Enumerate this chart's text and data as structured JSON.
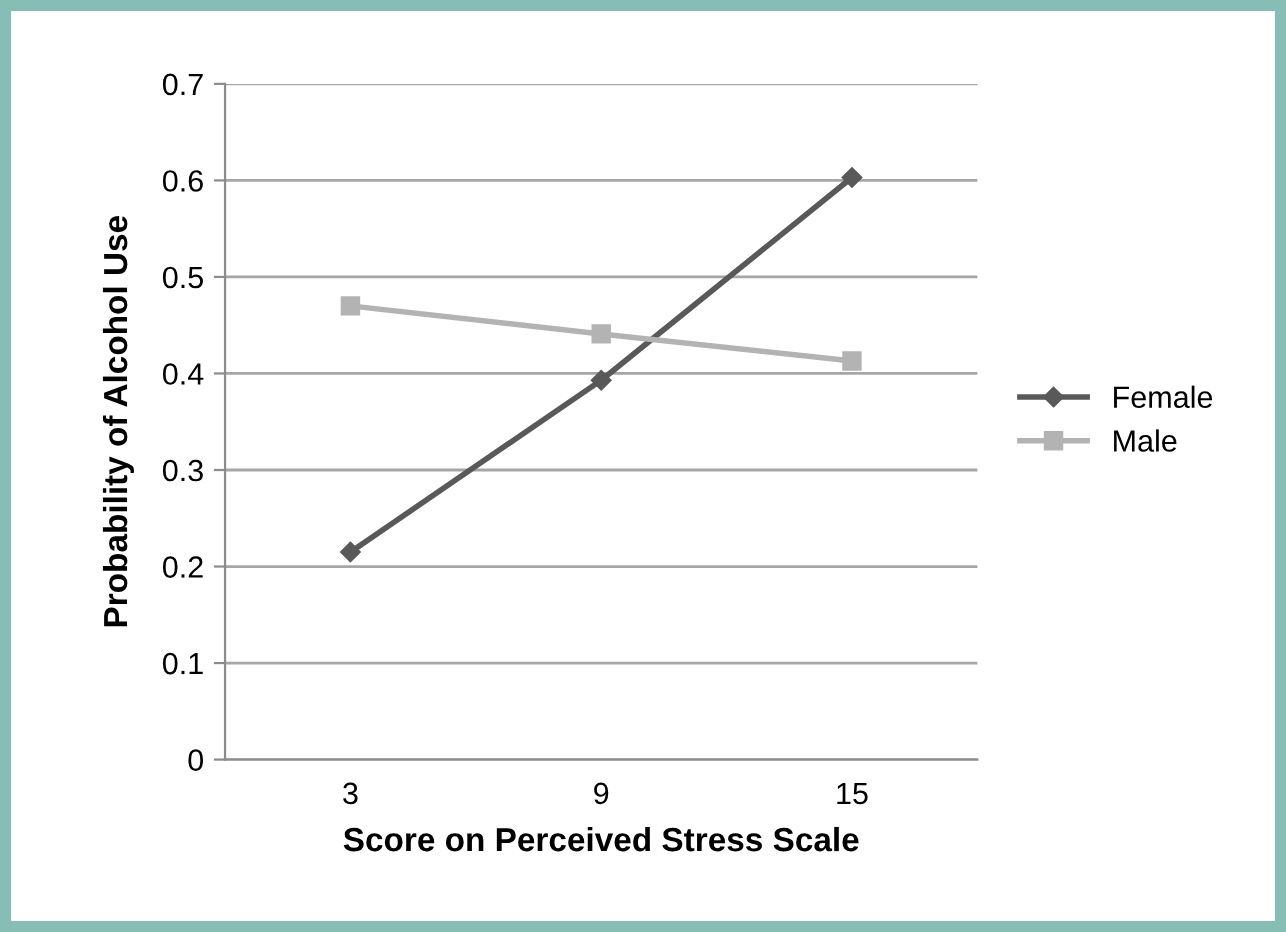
{
  "chart_data": {
    "type": "line",
    "xlabel": "Score on Perceived Stress Scale",
    "ylabel": "Probability of Alcohol Use",
    "categories": [
      "3",
      "9",
      "15"
    ],
    "series": [
      {
        "name": "Female",
        "color": "#595959",
        "marker": "diamond",
        "values": [
          0.215,
          0.393,
          0.603
        ]
      },
      {
        "name": "Male",
        "color": "#b3b3b3",
        "marker": "square",
        "values": [
          0.47,
          0.441,
          0.413
        ]
      }
    ],
    "ylim": [
      0,
      0.7
    ],
    "yticks": [
      0,
      0.1,
      0.2,
      0.3,
      0.4,
      0.5,
      0.6,
      0.7
    ],
    "grid": "y",
    "legend": "right"
  }
}
